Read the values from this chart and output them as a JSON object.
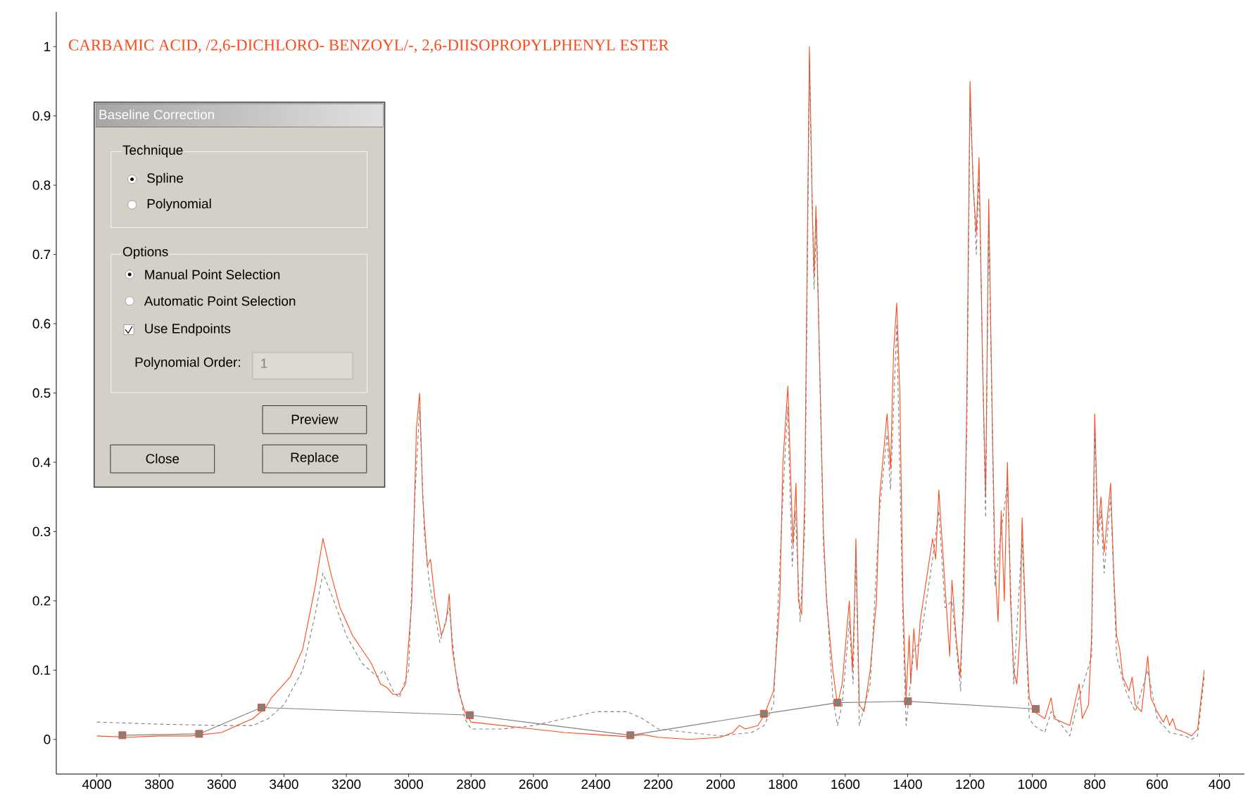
{
  "chart_data": {
    "type": "line",
    "title": "CARBAMIC ACID, /2,6-DICHLORO- BENZOYL/-, 2,6-DIISOPROPYLPHENYL ESTER",
    "xlim": [
      4130,
      320
    ],
    "ylim": [
      -0.05,
      1.05
    ],
    "xticks": [
      4000,
      3800,
      3600,
      3400,
      3200,
      3000,
      2800,
      2600,
      2400,
      2200,
      2000,
      1800,
      1600,
      1400,
      1200,
      1000,
      800,
      600,
      400
    ],
    "yticks": [
      0,
      0.1,
      0.2,
      0.3,
      0.4,
      0.5,
      0.6,
      0.7,
      0.8,
      0.9,
      1
    ],
    "series": [
      {
        "color": "#ff4a1a",
        "line_style": "solid",
        "marker": "none",
        "x": [
          4000,
          3900,
          3800,
          3700,
          3600,
          3550,
          3500,
          3460,
          3440,
          3420,
          3380,
          3340,
          3300,
          3275,
          3250,
          3220,
          3180,
          3150,
          3120,
          3090,
          3070,
          3050,
          3030,
          3010,
          2990,
          2975,
          2965,
          2955,
          2940,
          2930,
          2915,
          2895,
          2880,
          2870,
          2860,
          2840,
          2820,
          2800,
          2700,
          2600,
          2500,
          2400,
          2300,
          2250,
          2200,
          2100,
          2000,
          1960,
          1940,
          1920,
          1880,
          1860,
          1830,
          1810,
          1800,
          1784,
          1775,
          1768,
          1758,
          1750,
          1740,
          1730,
          1722,
          1715,
          1705,
          1700,
          1694,
          1680,
          1670,
          1660,
          1640,
          1625,
          1610,
          1587,
          1577,
          1570,
          1566,
          1555,
          1540,
          1520,
          1500,
          1490,
          1480,
          1466,
          1455,
          1445,
          1435,
          1425,
          1415,
          1405,
          1395,
          1390,
          1380,
          1370,
          1360,
          1340,
          1320,
          1310,
          1300,
          1280,
          1265,
          1258,
          1245,
          1232,
          1220,
          1210,
          1200,
          1190,
          1180,
          1171,
          1160,
          1150,
          1140,
          1130,
          1120,
          1110,
          1100,
          1090,
          1080,
          1070,
          1060,
          1050,
          1040,
          1033,
          1020,
          1010,
          995,
          960,
          940,
          930,
          880,
          850,
          840,
          820,
          810,
          800,
          790,
          780,
          770,
          749,
          740,
          730,
          720,
          710,
          690,
          680,
          670,
          650,
          630,
          620,
          600,
          580,
          570,
          560,
          550,
          540,
          510,
          490,
          470,
          449
        ],
        "values": [
          0.005,
          0.003,
          0.005,
          0.005,
          0.01,
          0.02,
          0.03,
          0.045,
          0.06,
          0.07,
          0.09,
          0.13,
          0.22,
          0.29,
          0.24,
          0.19,
          0.15,
          0.13,
          0.11,
          0.08,
          0.075,
          0.065,
          0.065,
          0.08,
          0.2,
          0.45,
          0.5,
          0.35,
          0.25,
          0.26,
          0.2,
          0.15,
          0.17,
          0.21,
          0.13,
          0.07,
          0.04,
          0.025,
          0.02,
          0.015,
          0.01,
          0.007,
          0.004,
          0.007,
          0.003,
          0.0,
          0.003,
          0.01,
          0.02,
          0.015,
          0.02,
          0.035,
          0.07,
          0.2,
          0.4,
          0.51,
          0.38,
          0.28,
          0.37,
          0.2,
          0.18,
          0.35,
          0.7,
          1.0,
          0.75,
          0.67,
          0.77,
          0.5,
          0.3,
          0.2,
          0.1,
          0.05,
          0.08,
          0.2,
          0.1,
          0.2,
          0.29,
          0.05,
          0.04,
          0.1,
          0.2,
          0.35,
          0.4,
          0.47,
          0.39,
          0.56,
          0.63,
          0.5,
          0.2,
          0.06,
          0.15,
          0.08,
          0.16,
          0.1,
          0.17,
          0.23,
          0.29,
          0.26,
          0.36,
          0.22,
          0.12,
          0.23,
          0.15,
          0.09,
          0.2,
          0.5,
          0.95,
          0.8,
          0.73,
          0.84,
          0.55,
          0.35,
          0.78,
          0.5,
          0.25,
          0.17,
          0.33,
          0.2,
          0.4,
          0.2,
          0.1,
          0.08,
          0.15,
          0.32,
          0.15,
          0.06,
          0.04,
          0.03,
          0.06,
          0.03,
          0.02,
          0.08,
          0.03,
          0.05,
          0.15,
          0.47,
          0.3,
          0.35,
          0.27,
          0.37,
          0.25,
          0.15,
          0.13,
          0.09,
          0.07,
          0.09,
          0.05,
          0.04,
          0.12,
          0.06,
          0.04,
          0.025,
          0.035,
          0.02,
          0.03,
          0.015,
          0.01,
          0.005,
          0.015,
          0.1
        ]
      },
      {
        "color": "#808080",
        "line_style": "dashed",
        "marker": "none",
        "x": [
          4000,
          3800,
          3600,
          3500,
          3450,
          3400,
          3340,
          3300,
          3275,
          3240,
          3200,
          3150,
          3100,
          3080,
          3050,
          3030,
          3000,
          2980,
          2965,
          2950,
          2935,
          2900,
          2870,
          2850,
          2820,
          2800,
          2700,
          2600,
          2500,
          2400,
          2300,
          2250,
          2200,
          2100,
          2000,
          1900,
          1860,
          1830,
          1800,
          1785,
          1770,
          1760,
          1745,
          1730,
          1715,
          1700,
          1692,
          1670,
          1640,
          1625,
          1610,
          1587,
          1575,
          1566,
          1555,
          1520,
          1490,
          1466,
          1455,
          1435,
          1415,
          1405,
          1380,
          1360,
          1320,
          1300,
          1280,
          1258,
          1230,
          1210,
          1200,
          1180,
          1171,
          1150,
          1140,
          1120,
          1100,
          1080,
          1060,
          1033,
          1010,
          995,
          960,
          940,
          880,
          850,
          810,
          800,
          790,
          780,
          770,
          749,
          730,
          700,
          670,
          630,
          600,
          560,
          510,
          490,
          470,
          449
        ],
        "values": [
          0.025,
          0.022,
          0.02,
          0.02,
          0.03,
          0.05,
          0.1,
          0.18,
          0.24,
          0.2,
          0.15,
          0.11,
          0.09,
          0.1,
          0.07,
          0.06,
          0.1,
          0.35,
          0.48,
          0.3,
          0.23,
          0.14,
          0.19,
          0.1,
          0.03,
          0.015,
          0.015,
          0.02,
          0.03,
          0.04,
          0.04,
          0.03,
          0.015,
          0.01,
          0.005,
          0.01,
          0.02,
          0.05,
          0.35,
          0.48,
          0.25,
          0.33,
          0.17,
          0.3,
          0.97,
          0.65,
          0.75,
          0.28,
          0.06,
          0.02,
          0.05,
          0.17,
          0.08,
          0.27,
          0.02,
          0.08,
          0.33,
          0.44,
          0.36,
          0.6,
          0.17,
          0.02,
          0.13,
          0.14,
          0.26,
          0.33,
          0.19,
          0.2,
          0.07,
          0.45,
          0.92,
          0.7,
          0.81,
          0.32,
          0.75,
          0.22,
          0.3,
          0.37,
          0.08,
          0.29,
          0.03,
          0.02,
          0.01,
          0.04,
          0.005,
          0.06,
          0.12,
          0.45,
          0.28,
          0.33,
          0.24,
          0.35,
          0.12,
          0.07,
          0.04,
          0.1,
          0.03,
          0.01,
          0.005,
          0.0,
          0.005,
          0.09
        ]
      },
      {
        "color": "#808080",
        "line_style": "solid",
        "marker": "square",
        "x": [
          3918,
          3672,
          3472,
          2804,
          2289,
          1861,
          1625,
          1399,
          989
        ],
        "values": [
          0.006,
          0.008,
          0.046,
          0.035,
          0.006,
          0.037,
          0.053,
          0.055,
          0.044
        ]
      }
    ],
    "annotations": [
      "Baseline Correction",
      "Technique",
      "Spline",
      "Polynomial",
      "Options",
      "Manual Point Selection",
      "Automatic Point Selection",
      "Use Endpoints",
      "Polynomial Order:",
      "1",
      "Preview",
      "Close",
      "Replace"
    ]
  }
}
